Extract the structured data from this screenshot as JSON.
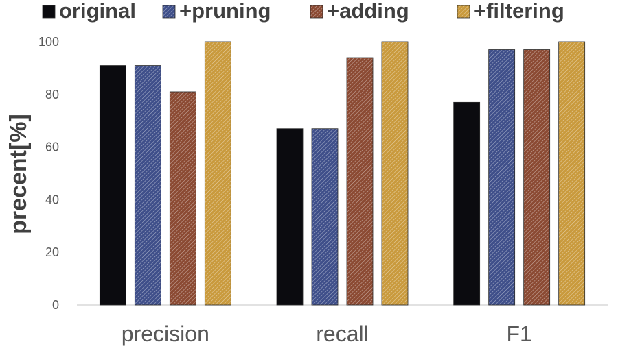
{
  "chart_data": {
    "type": "bar",
    "title": "",
    "xlabel": "",
    "ylabel": "precent[%]",
    "ylim": [
      0,
      100
    ],
    "yticks": [
      0,
      20,
      40,
      60,
      80,
      100
    ],
    "grid": false,
    "legend_position": "top",
    "categories": [
      "precision",
      "recall",
      "F1"
    ],
    "series": [
      {
        "name": "original",
        "values": [
          91,
          67,
          77
        ],
        "color": "#0b0b0f",
        "pattern": "solid"
      },
      {
        "name": "+pruning",
        "values": [
          91,
          67,
          97
        ],
        "color": "#3f4f8a",
        "pattern": "hatch"
      },
      {
        "name": "+adding",
        "values": [
          81,
          94,
          97
        ],
        "color": "#8b4a33",
        "pattern": "hatch"
      },
      {
        "name": "+filtering",
        "values": [
          100,
          100,
          100
        ],
        "color": "#c99a3d",
        "pattern": "hatch"
      }
    ]
  }
}
